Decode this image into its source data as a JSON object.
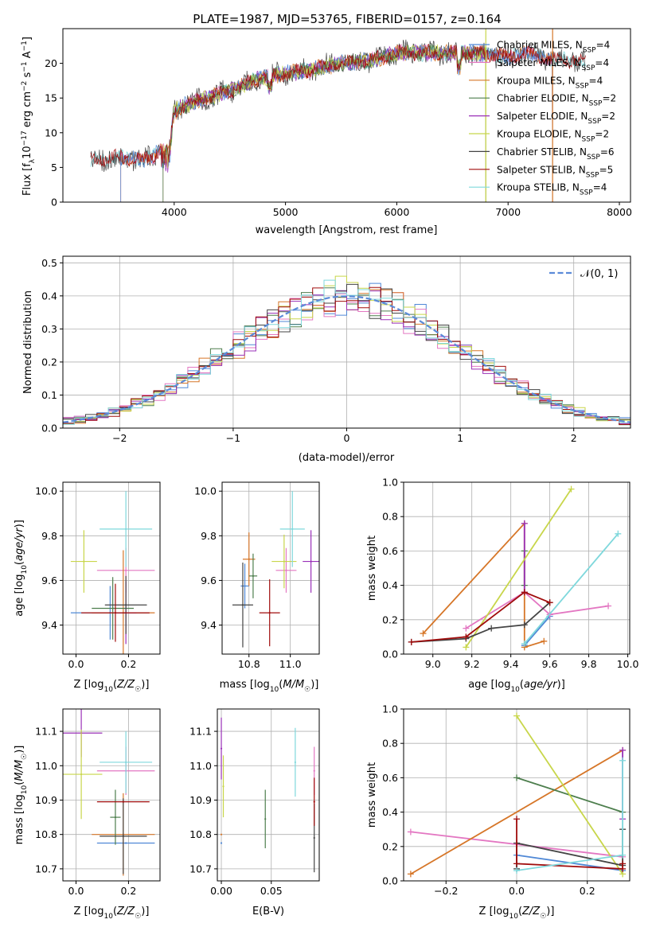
{
  "title": "PLATE=1987, MJD=53765, FIBERID=0157, z=0.164",
  "palette": {
    "Chabrier MILES": "#4f88d6",
    "Salpeter MILES": "#e377c2",
    "Kroupa MILES": "#d67628",
    "Chabrier ELODIE": "#4d7e4d",
    "Salpeter ELODIE": "#9a30b8",
    "Kroupa ELODIE": "#c8d64a",
    "Chabrier STELIB": "#444444",
    "Salpeter STELIB": "#a00c0c",
    "Kroupa STELIB": "#7fd8dc"
  },
  "chart_data": [
    {
      "id": "spectrum",
      "type": "line",
      "xlabel": "wavelength [Angstrom, rest frame]",
      "ylabel": "Flux [fλ10⁻¹⁷ erg cm⁻² s⁻¹ A⁻¹]",
      "xlim": [
        3000,
        8100
      ],
      "ylim": [
        0,
        25
      ],
      "xticks": [
        4000,
        5000,
        6000,
        7000,
        8000
      ],
      "yticks": [
        0,
        5,
        10,
        15,
        20
      ],
      "grid": false,
      "legend_position": "upper-right",
      "series": [
        {
          "name": "Chabrier MILES, N_SSP=4",
          "key": "Chabrier MILES"
        },
        {
          "name": "Salpeter MILES, N_SSP=4",
          "key": "Salpeter MILES"
        },
        {
          "name": "Kroupa MILES, N_SSP=4",
          "key": "Kroupa MILES"
        },
        {
          "name": "Chabrier ELODIE, N_SSP=2",
          "key": "Chabrier ELODIE"
        },
        {
          "name": "Salpeter ELODIE, N_SSP=2",
          "key": "Salpeter ELODIE"
        },
        {
          "name": "Kroupa ELODIE, N_SSP=2",
          "key": "Kroupa ELODIE"
        },
        {
          "name": "Chabrier STELIB, N_SSP=6",
          "key": "Chabrier STELIB"
        },
        {
          "name": "Salpeter STELIB, N_SSP=5",
          "key": "Salpeter STELIB"
        },
        {
          "name": "Kroupa STELIB, N_SSP=4",
          "key": "Kroupa STELIB"
        }
      ],
      "envelope": {
        "x": [
          3250,
          3500,
          3700,
          3800,
          3900,
          3950,
          4000,
          4100,
          4300,
          4500,
          4800,
          5000,
          5200,
          5500,
          5800,
          6000,
          6300,
          6500,
          6700,
          7000,
          7200,
          7400,
          7600,
          7700
        ],
        "y": [
          6,
          6.5,
          6,
          6.5,
          8,
          8,
          13,
          14,
          15,
          16,
          18,
          18.5,
          19,
          20,
          20.5,
          21.5,
          21.5,
          21.5,
          21.5,
          21,
          21.5,
          20.5,
          20.5,
          20
        ]
      }
    },
    {
      "id": "residuals",
      "type": "histogram",
      "xlabel": "(data-model)/error",
      "ylabel": "Normed distribution",
      "xlim": [
        -2.5,
        2.5
      ],
      "ylim": [
        0,
        0.52
      ],
      "xticks": [
        -2,
        -1,
        0,
        1,
        2
      ],
      "yticks": [
        0.0,
        0.1,
        0.2,
        0.3,
        0.4,
        0.5
      ],
      "grid": true,
      "legend": "𝒩(0, 1)",
      "legend_position": "upper-right",
      "bin_width": 0.1
    },
    {
      "id": "z-age",
      "type": "errorbar",
      "xlabel": "Z [log10(Z/Z☉)]",
      "ylabel": "age [log10(age/yr)]",
      "xlim": [
        -0.05,
        0.32
      ],
      "ylim": [
        9.27,
        10.04
      ],
      "xticks": [
        0.0,
        0.2
      ],
      "yticks": [
        9.4,
        9.6,
        9.8,
        10.0
      ],
      "points": [
        {
          "key": "Chabrier MILES",
          "x": 0.13,
          "xerr": 0.15,
          "y": 9.455,
          "yerr": 0.12
        },
        {
          "key": "Salpeter MILES",
          "x": 0.19,
          "xerr": 0.11,
          "y": 9.645,
          "yerr": 0.1
        },
        {
          "key": "Kroupa MILES",
          "x": 0.18,
          "xerr": 0.12,
          "y": 9.455,
          "yerr": 0.28
        },
        {
          "key": "Chabrier ELODIE",
          "x": 0.14,
          "xerr": 0.08,
          "y": 9.475,
          "yerr": 0.14
        },
        {
          "key": "Salpeter ELODIE",
          "x": 0.19,
          "xerr": 0.04,
          "y": 9.455,
          "yerr": 0.14
        },
        {
          "key": "Kroupa ELODIE",
          "x": 0.03,
          "xerr": 0.05,
          "y": 9.685,
          "yerr": 0.14
        },
        {
          "key": "Chabrier STELIB",
          "x": 0.19,
          "xerr": 0.08,
          "y": 9.49,
          "yerr": 0.13
        },
        {
          "key": "Salpeter STELIB",
          "x": 0.15,
          "xerr": 0.13,
          "y": 9.455,
          "yerr": 0.13
        },
        {
          "key": "Kroupa STELIB",
          "x": 0.19,
          "xerr": 0.1,
          "y": 9.83,
          "yerr": 0.17
        }
      ]
    },
    {
      "id": "mass-age",
      "type": "errorbar",
      "xlabel": "mass [log10(M/M☉)]",
      "ylabel": "",
      "xlim": [
        10.67,
        11.14
      ],
      "ylim": [
        9.27,
        10.04
      ],
      "xticks": [
        10.8,
        11.0
      ],
      "yticks": [
        9.4,
        9.6,
        9.8,
        10.0
      ],
      "points": [
        {
          "key": "Chabrier MILES",
          "x": 10.78,
          "xerr": 0.02,
          "y": 9.575,
          "yerr": 0.1
        },
        {
          "key": "Salpeter MILES",
          "x": 10.98,
          "xerr": 0.05,
          "y": 9.645,
          "yerr": 0.1
        },
        {
          "key": "Kroupa MILES",
          "x": 10.8,
          "xerr": 0.03,
          "y": 9.695,
          "yerr": 0.12
        },
        {
          "key": "Chabrier ELODIE",
          "x": 10.82,
          "xerr": 0.02,
          "y": 9.62,
          "yerr": 0.1
        },
        {
          "key": "Salpeter ELODIE",
          "x": 11.1,
          "xerr": 0.04,
          "y": 9.685,
          "yerr": 0.14
        },
        {
          "key": "Kroupa ELODIE",
          "x": 10.97,
          "xerr": 0.06,
          "y": 9.685,
          "yerr": 0.12
        },
        {
          "key": "Chabrier STELIB",
          "x": 10.77,
          "xerr": 0.05,
          "y": 9.49,
          "yerr": 0.19
        },
        {
          "key": "Salpeter STELIB",
          "x": 10.9,
          "xerr": 0.05,
          "y": 9.455,
          "yerr": 0.15
        },
        {
          "key": "Kroupa STELIB",
          "x": 11.01,
          "xerr": 0.06,
          "y": 9.83,
          "yerr": 0.17
        }
      ]
    },
    {
      "id": "age-weight",
      "type": "line",
      "xlabel": "age [log10(age/yr)]",
      "ylabel": "mass weight",
      "xlim": [
        8.85,
        10.01
      ],
      "ylim": [
        0,
        1.0
      ],
      "xticks": [
        9.0,
        9.2,
        9.4,
        9.6,
        9.8,
        10.0
      ],
      "yticks": [
        0.0,
        0.2,
        0.4,
        0.6,
        0.8,
        1.0
      ],
      "grid": true,
      "series": [
        {
          "key": "Chabrier MILES",
          "x": [
            9.47,
            9.6
          ],
          "y": [
            0.05,
            0.22
          ]
        },
        {
          "key": "Salpeter MILES",
          "x": [
            9.17,
            9.47,
            9.6,
            9.9
          ],
          "y": [
            0.15,
            0.36,
            0.23,
            0.28
          ]
        },
        {
          "key": "Kroupa MILES",
          "x": [
            8.95,
            9.47,
            9.47,
            9.57
          ],
          "y": [
            0.12,
            0.76,
            0.04,
            0.075
          ]
        },
        {
          "key": "Chabrier ELODIE",
          "x": [
            9.47,
            9.47
          ],
          "y": [
            0.6,
            0.4
          ]
        },
        {
          "key": "Salpeter ELODIE",
          "x": [
            9.47,
            9.47
          ],
          "y": [
            0.76,
            0.36
          ]
        },
        {
          "key": "Kroupa ELODIE",
          "x": [
            9.17,
            9.71
          ],
          "y": [
            0.04,
            0.96
          ]
        },
        {
          "key": "Chabrier STELIB",
          "x": [
            8.89,
            9.17,
            9.3,
            9.47,
            9.6
          ],
          "y": [
            0.07,
            0.09,
            0.15,
            0.17,
            0.3
          ]
        },
        {
          "key": "Salpeter STELIB",
          "x": [
            8.89,
            9.17,
            9.47,
            9.6
          ],
          "y": [
            0.07,
            0.1,
            0.36,
            0.3
          ]
        },
        {
          "key": "Kroupa STELIB",
          "x": [
            9.47,
            9.95
          ],
          "y": [
            0.06,
            0.7
          ]
        }
      ]
    },
    {
      "id": "z-mass",
      "type": "errorbar",
      "xlabel": "Z [log10(Z/Z☉)]",
      "ylabel": "mass [log10(M/M☉)]",
      "xlim": [
        -0.05,
        0.32
      ],
      "ylim": [
        10.665,
        11.165
      ],
      "xticks": [
        0.0,
        0.2
      ],
      "yticks": [
        10.7,
        10.8,
        10.9,
        11.0,
        11.1
      ],
      "points": [
        {
          "key": "Chabrier MILES",
          "x": 0.19,
          "xerr": 0.11,
          "y": 10.775,
          "yerr": 0.0
        },
        {
          "key": "Salpeter MILES",
          "x": 0.19,
          "xerr": 0.11,
          "y": 10.985,
          "yerr": 0.07
        },
        {
          "key": "Kroupa MILES",
          "x": 0.18,
          "xerr": 0.12,
          "y": 10.8,
          "yerr": 0.12
        },
        {
          "key": "Chabrier ELODIE",
          "x": 0.15,
          "xerr": 0.02,
          "y": 10.85,
          "yerr": 0.08
        },
        {
          "key": "Salpeter ELODIE",
          "x": 0.02,
          "xerr": 0.08,
          "y": 11.095,
          "yerr": 0.07
        },
        {
          "key": "Kroupa ELODIE",
          "x": 0.02,
          "xerr": 0.08,
          "y": 10.975,
          "yerr": 0.13
        },
        {
          "key": "Chabrier STELIB",
          "x": 0.18,
          "xerr": 0.09,
          "y": 10.795,
          "yerr": 0.11
        },
        {
          "key": "Salpeter STELIB",
          "x": 0.18,
          "xerr": 0.1,
          "y": 10.895,
          "yerr": 0.0
        },
        {
          "key": "Kroupa STELIB",
          "x": 0.19,
          "xerr": 0.1,
          "y": 11.01,
          "yerr": 0.09
        }
      ]
    },
    {
      "id": "ebv-mass",
      "type": "errorbar",
      "xlabel": "E(B-V)",
      "ylabel": "",
      "xlim": [
        -0.004,
        0.098
      ],
      "ylim": [
        10.665,
        11.165
      ],
      "xticks": [
        0.0,
        0.05
      ],
      "yticks": [
        10.7,
        10.8,
        10.9,
        11.0,
        11.1
      ],
      "points": [
        {
          "key": "Chabrier MILES",
          "x": 0.0,
          "xerr": 0,
          "y": 10.775,
          "yerr": 0.0
        },
        {
          "key": "Salpeter MILES",
          "x": 0.093,
          "xerr": 0,
          "y": 10.985,
          "yerr": 0.07
        },
        {
          "key": "Kroupa MILES",
          "x": 0.0,
          "xerr": 0,
          "y": 10.8,
          "yerr": 0.0
        },
        {
          "key": "Chabrier ELODIE",
          "x": 0.044,
          "xerr": 0,
          "y": 10.845,
          "yerr": 0.085
        },
        {
          "key": "Salpeter ELODIE",
          "x": 0.0,
          "xerr": 0,
          "y": 11.05,
          "yerr": 0.09
        },
        {
          "key": "Kroupa ELODIE",
          "x": 0.002,
          "xerr": 0,
          "y": 10.94,
          "yerr": 0.09
        },
        {
          "key": "Chabrier STELIB",
          "x": 0.093,
          "xerr": 0,
          "y": 10.79,
          "yerr": 0.1
        },
        {
          "key": "Salpeter STELIB",
          "x": 0.093,
          "xerr": 0,
          "y": 10.895,
          "yerr": 0.07
        },
        {
          "key": "Kroupa STELIB",
          "x": 0.074,
          "xerr": 0,
          "y": 11.01,
          "yerr": 0.1
        }
      ]
    },
    {
      "id": "z-weight",
      "type": "line",
      "xlabel": "Z [log10(Z/Z☉)]",
      "ylabel": "mass weight",
      "xlim": [
        -0.32,
        0.32
      ],
      "ylim": [
        0,
        1.0
      ],
      "xticks": [
        -0.2,
        0.0,
        0.2
      ],
      "yticks": [
        0.0,
        0.2,
        0.4,
        0.6,
        0.8,
        1.0
      ],
      "grid": true,
      "series": [
        {
          "key": "Chabrier MILES",
          "x": [
            0.0,
            0.3
          ],
          "y": [
            0.15,
            0.06
          ]
        },
        {
          "key": "Salpeter MILES",
          "x": [
            -0.3,
            0.3
          ],
          "y": [
            0.285,
            0.14
          ]
        },
        {
          "key": "Kroupa MILES",
          "x": [
            -0.3,
            0.3
          ],
          "y": [
            0.04,
            0.76
          ]
        },
        {
          "key": "Chabrier ELODIE",
          "x": [
            0.0,
            0.3
          ],
          "y": [
            0.6,
            0.4
          ]
        },
        {
          "key": "Salpeter ELODIE",
          "x": [
            0.3,
            0.3
          ],
          "y": [
            0.76,
            0.36
          ]
        },
        {
          "key": "Kroupa ELODIE",
          "x": [
            0.0,
            0.3
          ],
          "y": [
            0.96,
            0.04
          ]
        },
        {
          "key": "Chabrier STELIB",
          "x": [
            0.0,
            0.0,
            0.3,
            0.3
          ],
          "y": [
            0.07,
            0.22,
            0.09,
            0.3
          ]
        },
        {
          "key": "Salpeter STELIB",
          "x": [
            0.0,
            0.0,
            0.3,
            0.3
          ],
          "y": [
            0.36,
            0.1,
            0.07,
            0.1
          ]
        },
        {
          "key": "Kroupa STELIB",
          "x": [
            0.0,
            0.3,
            0.3
          ],
          "y": [
            0.06,
            0.15,
            0.7
          ]
        }
      ]
    }
  ]
}
